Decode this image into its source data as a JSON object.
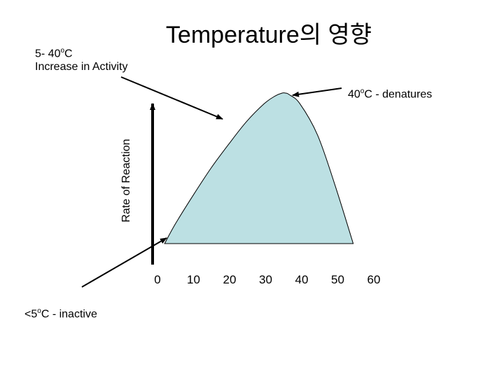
{
  "title": "Temperature의 영향",
  "annotations": {
    "increase": {
      "range": "5- 40",
      "unit": "C",
      "deg": "o",
      "text": "Increase in Activity"
    },
    "denature": {
      "temp": "40",
      "deg": "o",
      "suffix": "C - denatures"
    },
    "inactive": {
      "prefix": "<5",
      "deg": "o",
      "suffix": "C - inactive"
    }
  },
  "colors": {
    "fill": "#bce0e3",
    "stroke": "#000000"
  },
  "chart_data": {
    "type": "area",
    "ylabel": "Rate of Reaction",
    "xlabel": "",
    "x_ticks": [
      "0",
      "10",
      "20",
      "30",
      "40",
      "50",
      "60"
    ],
    "xlim": [
      0,
      60
    ],
    "ylim": [
      0,
      1
    ],
    "series": [
      {
        "x": [
          2,
          5,
          10,
          15,
          20,
          25,
          30,
          33,
          35,
          36,
          37,
          40,
          45,
          50,
          55
        ],
        "values": [
          0.0,
          0.13,
          0.32,
          0.5,
          0.66,
          0.81,
          0.93,
          0.98,
          1.0,
          1.0,
          0.99,
          0.93,
          0.72,
          0.38,
          0.0
        ]
      }
    ]
  }
}
